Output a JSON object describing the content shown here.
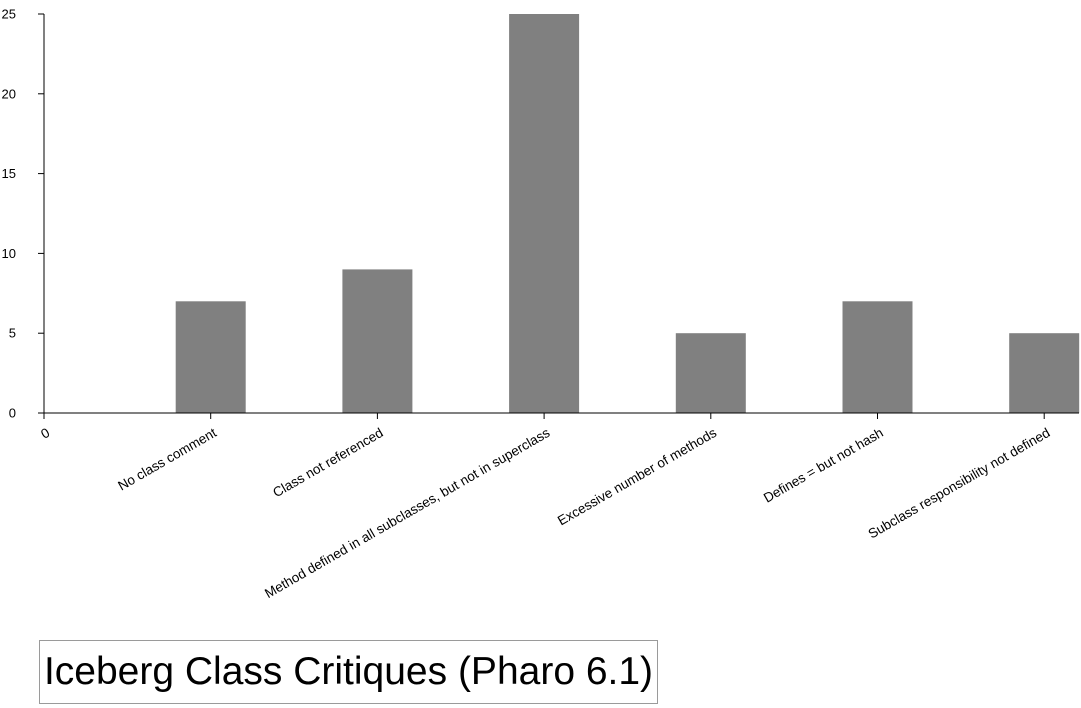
{
  "chart_data": {
    "type": "bar",
    "title": "Iceberg Class Critiques (Pharo 6.1)",
    "categories": [
      "0",
      "No class comment",
      "Class not referenced",
      "Method defined in all subclasses, but not in superclass",
      "Excessive number of methods",
      "Defines = but not hash",
      "Subclass responsibility not defined"
    ],
    "values": [
      null,
      7,
      9,
      25,
      5,
      7,
      5
    ],
    "xlabel": "",
    "ylabel": "",
    "ylim": [
      0,
      25
    ],
    "yticks": [
      0,
      5,
      10,
      15,
      20,
      25
    ],
    "grid": false,
    "legend": "none",
    "bar_color": "#808080",
    "axis_color": "#000000"
  }
}
